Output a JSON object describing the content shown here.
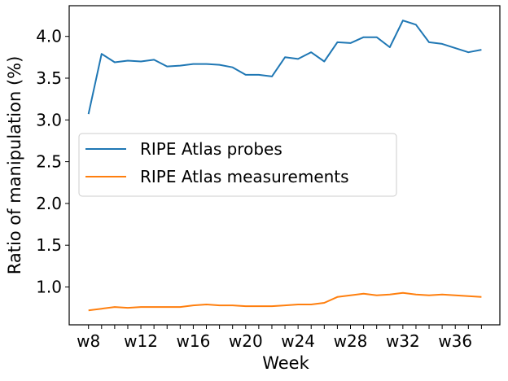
{
  "chart_data": {
    "type": "line",
    "title": "",
    "xlabel": "Week",
    "ylabel": "Ratio of manipulation (%)",
    "x": [
      "w8",
      "w9",
      "w10",
      "w11",
      "w12",
      "w13",
      "w14",
      "w15",
      "w16",
      "w17",
      "w18",
      "w19",
      "w20",
      "w21",
      "w22",
      "w23",
      "w24",
      "w25",
      "w26",
      "w27",
      "w28",
      "w29",
      "w30",
      "w31",
      "w32",
      "w33",
      "w34",
      "w35",
      "w36",
      "w37",
      "w38"
    ],
    "x_tick_labels": [
      "w8",
      "w12",
      "w16",
      "w20",
      "w24",
      "w28",
      "w32",
      "w36"
    ],
    "y_ticks": [
      1.0,
      1.5,
      2.0,
      2.5,
      3.0,
      3.5,
      4.0
    ],
    "y_tick_labels": [
      "1.0",
      "1.5",
      "2.0",
      "2.5",
      "3.0",
      "3.5",
      "4.0"
    ],
    "ylim": [
      0.55,
      4.37
    ],
    "grid": false,
    "legend_position": "center left",
    "series": [
      {
        "name": "RIPE Atlas probes",
        "color": "#1f77b4",
        "values": [
          3.07,
          3.79,
          3.69,
          3.71,
          3.7,
          3.72,
          3.64,
          3.65,
          3.67,
          3.67,
          3.66,
          3.63,
          3.54,
          3.54,
          3.52,
          3.75,
          3.73,
          3.81,
          3.7,
          3.93,
          3.92,
          3.99,
          3.99,
          3.87,
          4.19,
          4.14,
          3.93,
          3.91,
          3.86,
          3.81,
          3.84
        ]
      },
      {
        "name": "RIPE Atlas measurements",
        "color": "#ff7f0e",
        "values": [
          0.72,
          0.74,
          0.76,
          0.75,
          0.76,
          0.76,
          0.76,
          0.76,
          0.78,
          0.79,
          0.78,
          0.78,
          0.77,
          0.77,
          0.77,
          0.78,
          0.79,
          0.79,
          0.81,
          0.88,
          0.9,
          0.92,
          0.9,
          0.91,
          0.93,
          0.91,
          0.9,
          0.91,
          0.9,
          0.89,
          0.88
        ]
      }
    ]
  }
}
